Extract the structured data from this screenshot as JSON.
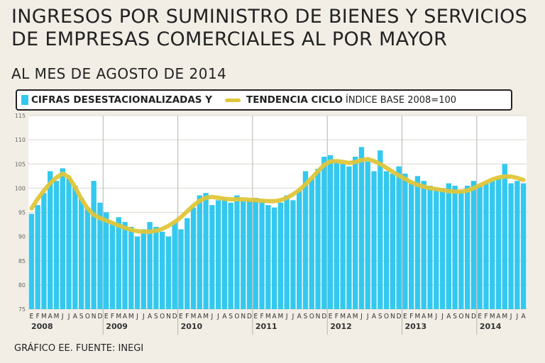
{
  "header": {
    "title_line1": "INGRESOS POR SUMINISTRO DE BIENES Y SERVICIOS",
    "title_line2": "DE EMPRESAS COMERCIALES AL POR MAYOR",
    "subtitle": "AL MES DE AGOSTO DE 2014"
  },
  "legend": {
    "series1_label": "CIFRAS DESESTACIONALIZADAS Y",
    "series2_label": "TENDENCIA CICLO",
    "note": "ÍNDICE BASE 2008=100"
  },
  "footer": {
    "source": "GRÁFICO EE. FUENTE: INEGI"
  },
  "colors": {
    "bars": "#33c8ef",
    "trend": "#e0c63a",
    "background": "#f2eee6"
  },
  "chart_data": {
    "type": "bar",
    "title": "INGRESOS POR SUMINISTRO DE BIENES Y SERVICIOS DE EMPRESAS COMERCIALES AL POR MAYOR",
    "ylim": [
      75,
      115
    ],
    "yticks": [
      75,
      80,
      85,
      90,
      95,
      100,
      105,
      110,
      115
    ],
    "month_labels": [
      "E",
      "F",
      "M",
      "A",
      "M",
      "J",
      "J",
      "A",
      "S",
      "O",
      "N",
      "D"
    ],
    "years": [
      "2008",
      "2009",
      "2010",
      "2011",
      "2012",
      "2013",
      "2014"
    ],
    "series": [
      {
        "name": "CIFRAS DESESTACIONALIZADAS",
        "type": "bar",
        "values": [
          94.7,
          96.5,
          99.0,
          103.5,
          101.5,
          104.1,
          102.0,
          100.5,
          98.0,
          96.0,
          101.5,
          97.0,
          95.0,
          92.8,
          94.0,
          93.0,
          92.0,
          90.0,
          91.5,
          93.0,
          92.0,
          91.0,
          90.0,
          93.0,
          91.5,
          93.8,
          96.0,
          98.5,
          99.0,
          96.5,
          97.5,
          98.0,
          97.0,
          98.5,
          97.5,
          97.5,
          98.0,
          97.5,
          96.5,
          96.0,
          97.0,
          98.5,
          97.5,
          99.5,
          103.5,
          102.0,
          104.0,
          106.5,
          106.8,
          105.5,
          105.0,
          104.5,
          106.5,
          108.5,
          105.5,
          103.5,
          107.8,
          103.5,
          103.0,
          104.5,
          103.0,
          101.0,
          102.5,
          101.5,
          100.5,
          100.0,
          100.0,
          101.0,
          100.5,
          99.5,
          100.5,
          101.5,
          100.5,
          101.0,
          101.5,
          102.0,
          105.0,
          101.0,
          101.5,
          101.0
        ]
      },
      {
        "name": "TENDENCIA CICLO",
        "type": "line",
        "values": [
          95.8,
          97.8,
          99.5,
          101.0,
          102.2,
          103.0,
          102.3,
          100.2,
          97.8,
          95.8,
          94.5,
          93.8,
          93.3,
          92.8,
          92.3,
          91.8,
          91.4,
          91.1,
          91.0,
          91.0,
          91.2,
          91.6,
          92.2,
          93.0,
          94.0,
          95.2,
          96.4,
          97.4,
          98.0,
          98.2,
          98.0,
          97.8,
          97.7,
          97.7,
          97.7,
          97.6,
          97.5,
          97.4,
          97.3,
          97.3,
          97.5,
          98.0,
          98.7,
          99.6,
          100.8,
          102.1,
          103.5,
          104.8,
          105.5,
          105.6,
          105.4,
          105.2,
          105.4,
          105.8,
          106.0,
          105.6,
          105.0,
          104.2,
          103.4,
          102.6,
          101.9,
          101.2,
          100.7,
          100.3,
          100.0,
          99.8,
          99.6,
          99.4,
          99.3,
          99.3,
          99.5,
          100.0,
          100.6,
          101.2,
          101.8,
          102.2,
          102.4,
          102.4,
          102.1,
          101.7
        ]
      }
    ]
  }
}
